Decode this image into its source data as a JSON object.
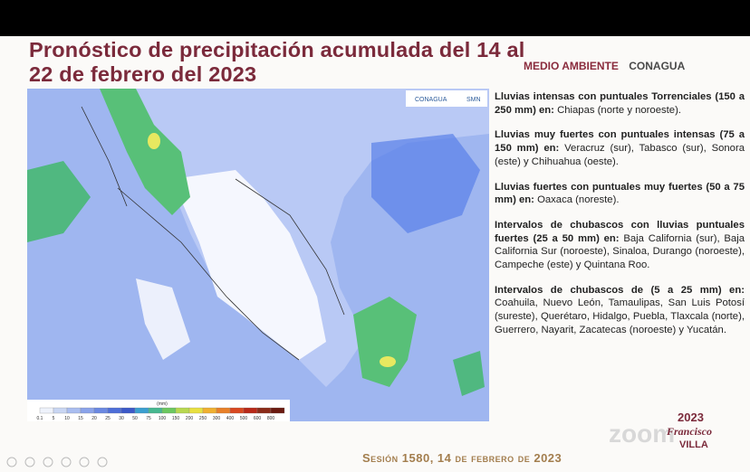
{
  "title": "Pronóstico de precipitación acumulada del 14 al 22 de febrero del 2023",
  "logos": {
    "semarnat": "MEDIO AMBIENTE",
    "conagua": "CONAGUA",
    "map_conagua": "CONAGUA",
    "map_smn": "SMN"
  },
  "legend": {
    "unit": "(mm)",
    "labels": [
      "0.1",
      "5",
      "10",
      "15",
      "20",
      "25",
      "30",
      "50",
      "75",
      "100",
      "150",
      "200",
      "250",
      "300",
      "400",
      "500",
      "600",
      "800"
    ]
  },
  "notes": [
    {
      "bold": "Lluvias intensas con puntuales Torrenciales (150 a 250 mm) en:",
      "text": "Chiapas (norte y noroeste)."
    },
    {
      "bold": "Lluvias muy fuertes con puntuales intensas (75 a 150 mm) en:",
      "text": "Veracruz (sur), Tabasco (sur), Sonora (este) y Chihuahua (oeste)."
    },
    {
      "bold": "Lluvias fuertes con puntuales muy fuertes (50 a 75 mm) en:",
      "text": "Oaxaca (noreste)."
    },
    {
      "bold": "Intervalos de chubascos con lluvias puntuales fuertes (25 a 50 mm) en:",
      "text": "Baja California (sur), Baja California Sur (noroeste), Sinaloa, Durango (noroeste), Campeche (este) y Quintana Roo."
    },
    {
      "bold": "Intervalos de chubascos de (5 a 25 mm) en:",
      "text": "Coahuila, Nuevo León, Tamaulipas, San Luis Potosí (sureste), Querétaro, Hidalgo, Puebla, Tlaxcala (norte), Guerrero, Nayarit, Zacatecas (noroeste) y Yucatán."
    }
  ],
  "footer": "Sesión 1580, 14 de febrero de 2023",
  "badge": {
    "year": "2023",
    "name": "Francisco",
    "surname": "VILLA"
  },
  "watermark": "zoom"
}
